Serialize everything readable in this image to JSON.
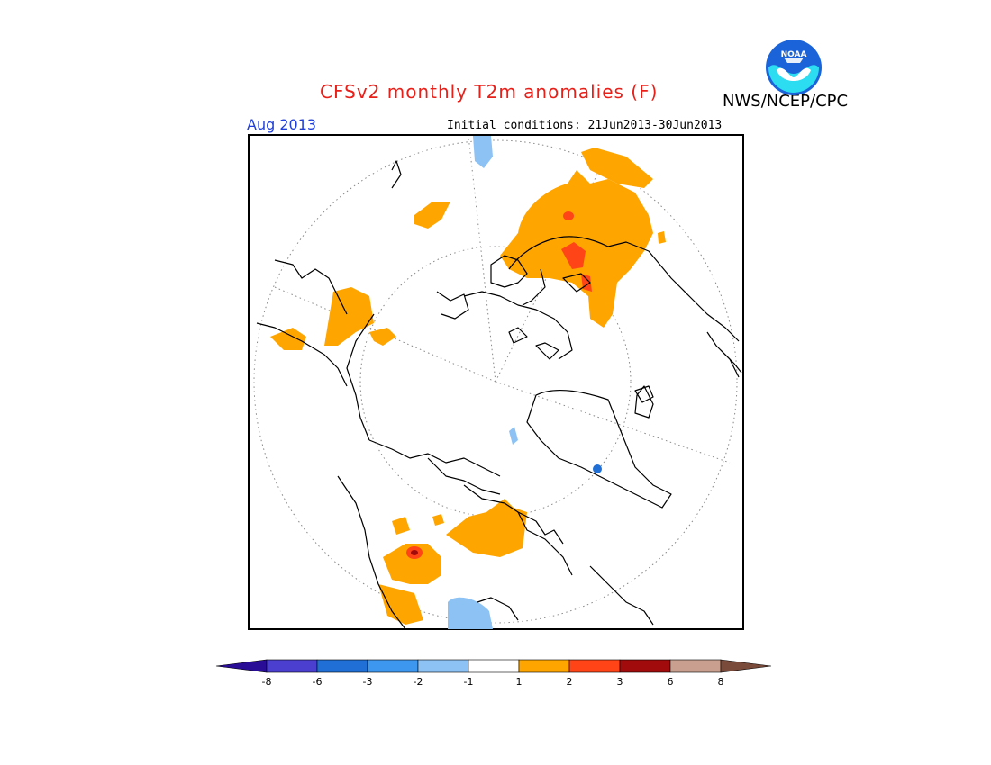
{
  "header": {
    "title": "CFSv2 monthly T2m anomalies (F)",
    "org": "NWS/NCEP/CPC",
    "logo_text": "NOAA",
    "month": "Aug 2013",
    "initial_conditions": "Initial conditions: 21Jun2013-30Jun2013"
  },
  "colorbar": {
    "labels": [
      "-8",
      "-6",
      "-3",
      "-2",
      "-1",
      "1",
      "2",
      "3",
      "6",
      "8"
    ],
    "colors": [
      "#2a0d96",
      "#4a3fcf",
      "#1f6fd6",
      "#3e97ee",
      "#8cc2f4",
      "#ffffff",
      "#ffa500",
      "#ff4417",
      "#a10b0b",
      "#c9a08f",
      "#7a4a3a"
    ]
  },
  "palette": {
    "warm1": "#ffa500",
    "warm2": "#ff4417",
    "warm3": "#a10b0b",
    "cool1": "#8cc2f4",
    "cool2": "#3e97ee",
    "cool3": "#1f6fd6"
  }
}
